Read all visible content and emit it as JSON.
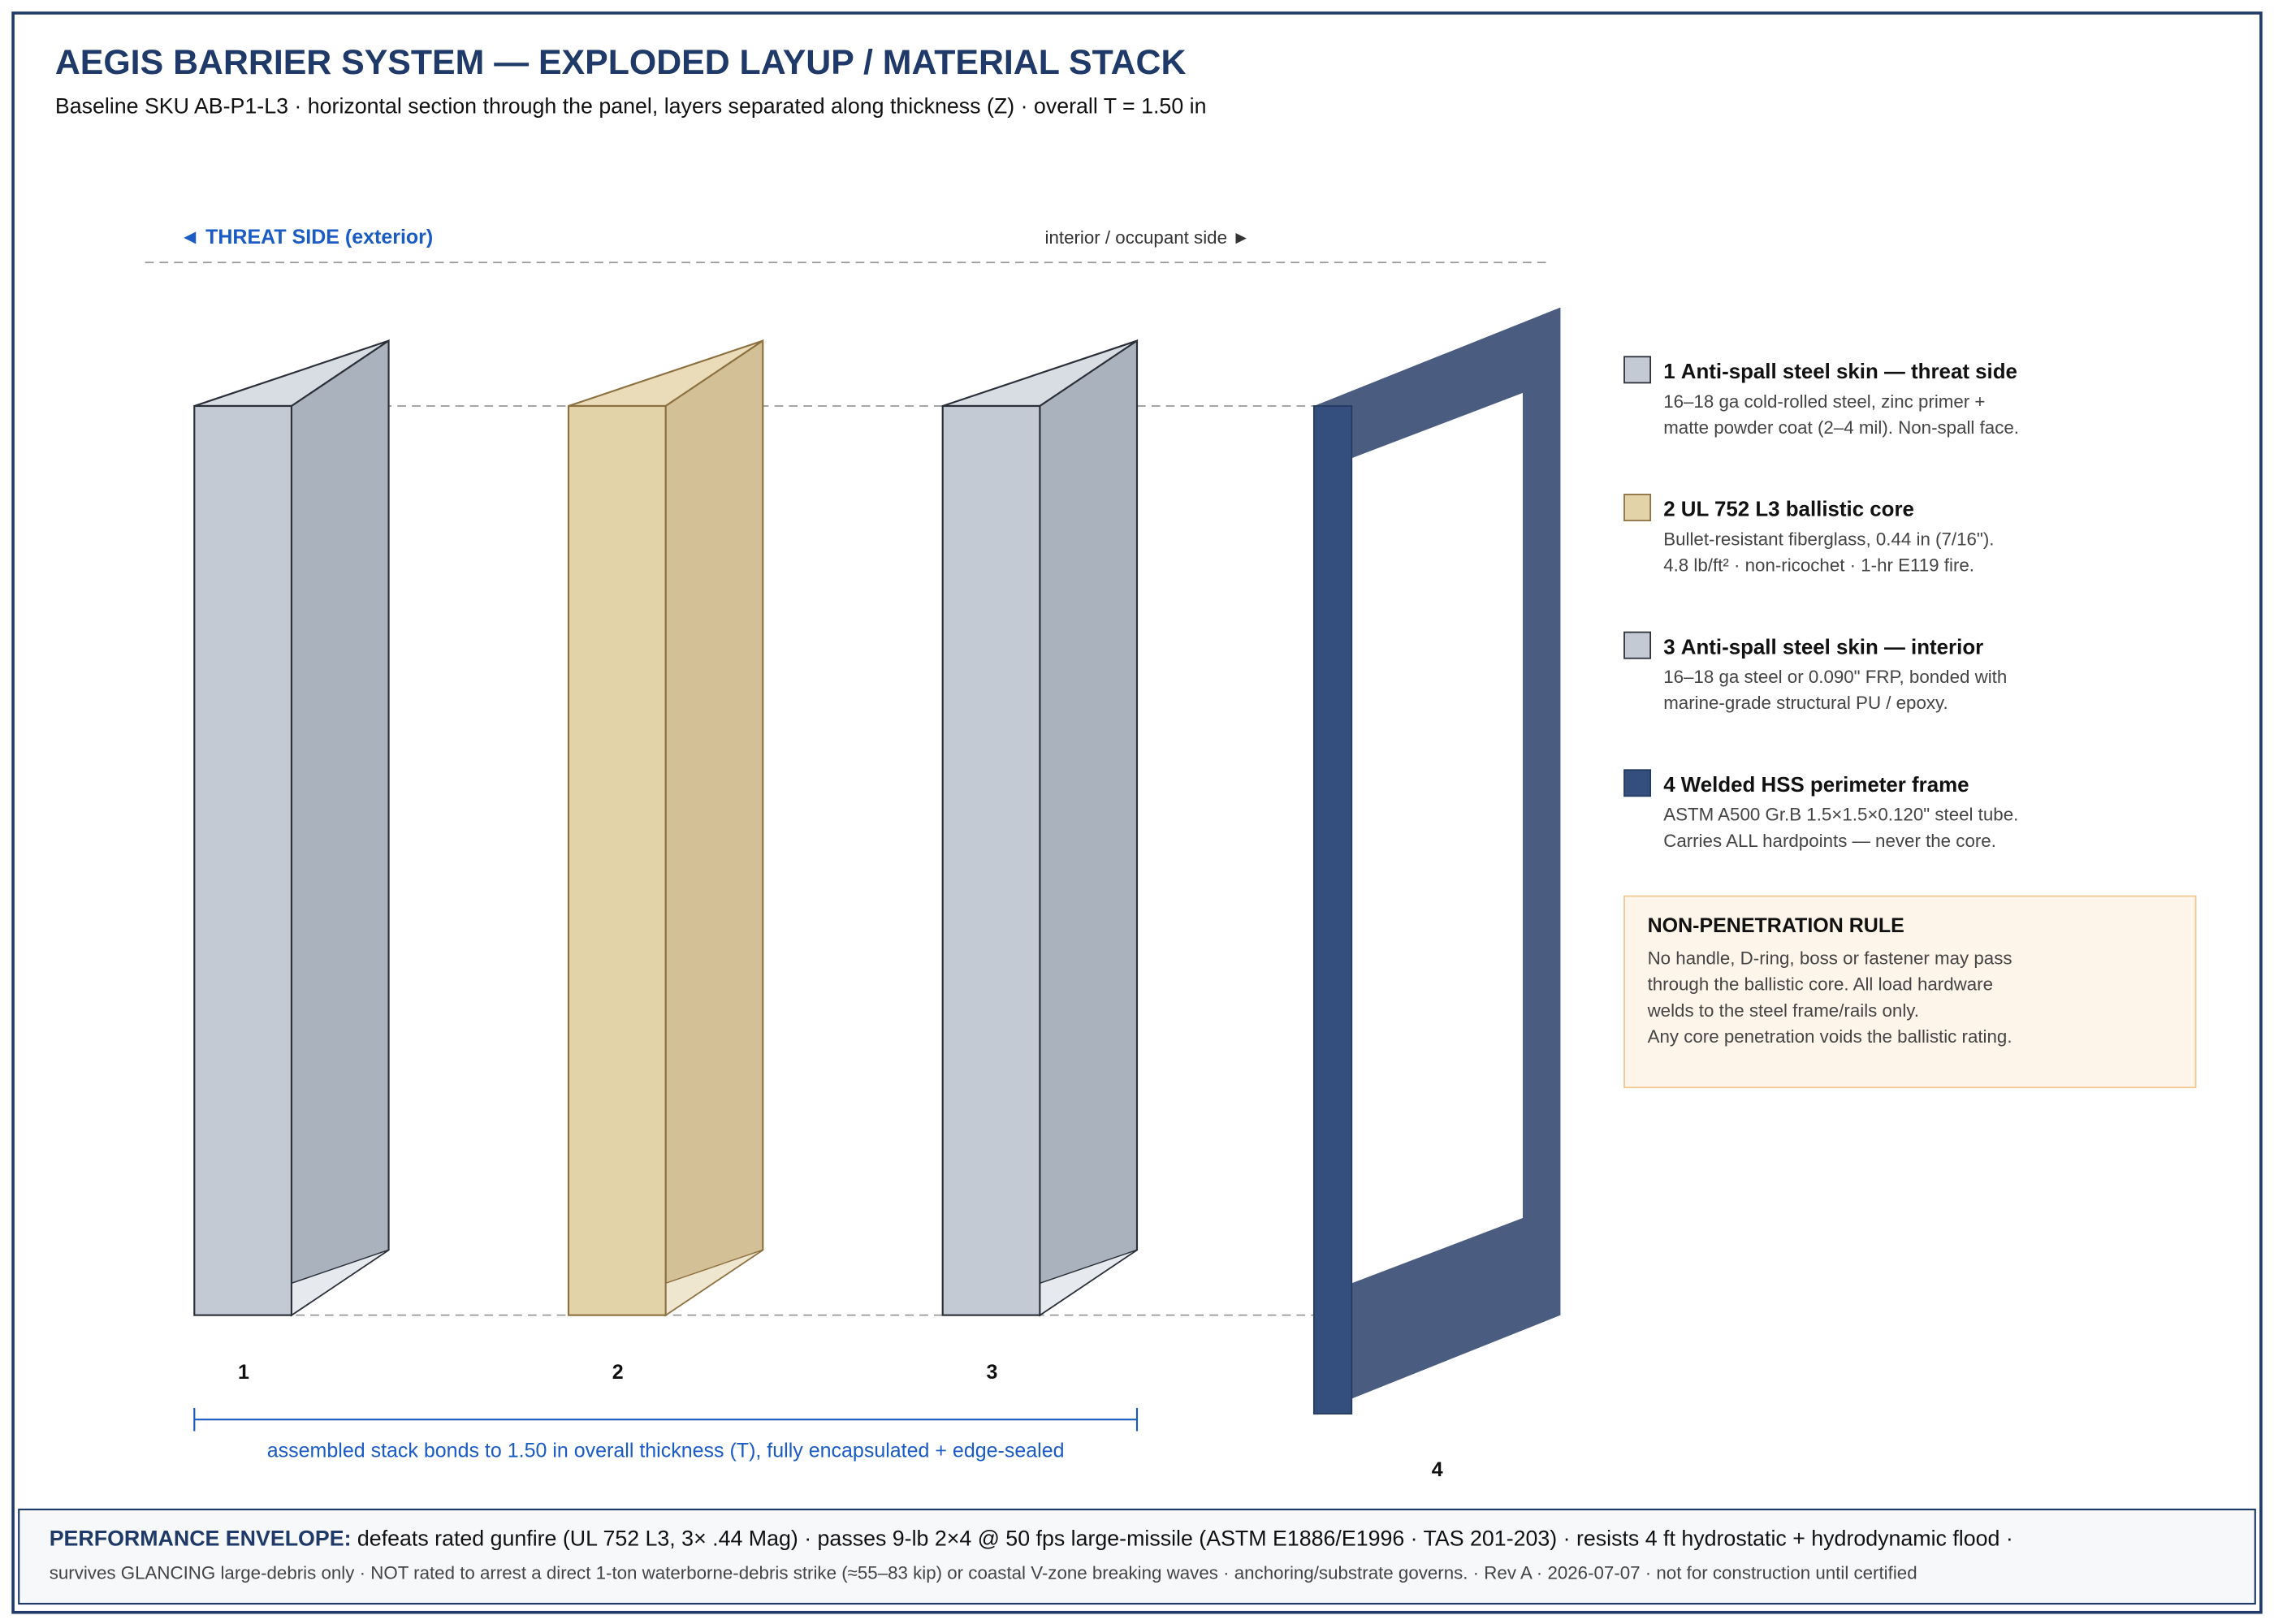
{
  "header": {
    "title": "AEGIS BARRIER SYSTEM — EXPLODED LAYUP / MATERIAL STACK",
    "subtitle": "Baseline SKU AB-P1-L3 · horizontal section through the panel, layers separated along thickness (Z) · overall T = 1.50 in"
  },
  "diagram": {
    "threat_side": "◄ THREAT SIDE (exterior)",
    "interior_side": "interior / occupant side ►",
    "stack_note": "assembled stack bonds to 1.50 in overall thickness (T), fully encapsulated + edge-sealed"
  },
  "layers": [
    {
      "number": "1",
      "title": "Anti-spall steel skin — threat side",
      "lines": [
        "16–18 ga cold-rolled steel, zinc primer +",
        "matte powder coat (2–4 mil). Non-spall face."
      ]
    },
    {
      "number": "2",
      "title": "UL 752 L3 ballistic core",
      "lines": [
        "Bullet-resistant fiberglass, 0.44 in (7/16\").",
        "4.8 lb/ft² · non-ricochet · 1-hr E119 fire."
      ]
    },
    {
      "number": "3",
      "title": "Anti-spall steel skin — interior",
      "lines": [
        "16–18 ga steel or 0.090\" FRP, bonded with",
        "marine-grade structural PU / epoxy."
      ]
    },
    {
      "number": "4",
      "title": "Welded HSS perimeter frame",
      "lines": [
        "ASTM A500 Gr.B 1.5×1.5×0.120\" steel tube.",
        "Carries ALL hardpoints — never the core."
      ]
    }
  ],
  "rule": {
    "title": "NON-PENETRATION RULE",
    "lines": [
      "No handle, D-ring, boss or fastener may pass",
      "through the ballistic core. All load hardware",
      "welds to the steel frame/rails only.",
      "Any core penetration voids the ballistic rating."
    ]
  },
  "footer": {
    "label": "PERFORMANCE ENVELOPE:",
    "line1": "defeats rated gunfire (UL 752 L3, 3× .44 Mag) · passes 9-lb 2×4 @ 50 fps large-missile (ASTM E1886/E1996 · TAS 201-203) · resists 4 ft hydrostatic + hydrodynamic flood ·",
    "line2": "survives GLANCING large-debris only · NOT rated to arrest a direct 1-ton waterborne-debris strike (≈55–83 kip) or coastal V-zone breaking waves · anchoring/substrate governs. · Rev A · 2026-07-07 · not for construction until certified"
  }
}
